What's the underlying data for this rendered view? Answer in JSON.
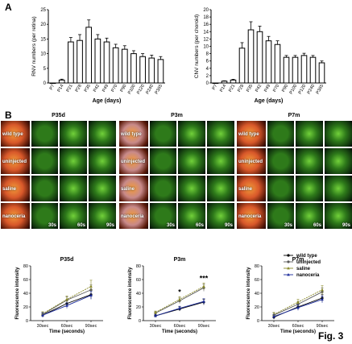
{
  "panel_a_label": "A",
  "panel_b_label": "B",
  "figure_label": "Fig. 3",
  "chart_data": [
    {
      "type": "bar",
      "ylabel": "RNV numbers (per retina)",
      "xlabel": "Age (days)",
      "ylim": [
        0,
        25
      ],
      "yticks": [
        0,
        5,
        10,
        15,
        20,
        25
      ],
      "categories": [
        "P7",
        "P14",
        "P21",
        "P28",
        "P35",
        "P42",
        "P49",
        "P70",
        "P90",
        "P100",
        "P120",
        "P240",
        "P365"
      ],
      "values": [
        0,
        1,
        14,
        14.5,
        19,
        15,
        14,
        12,
        11.5,
        10,
        9,
        8.5,
        8
      ],
      "errors": [
        0,
        0.3,
        1.5,
        2,
        2.5,
        1.5,
        1.3,
        1.2,
        1.2,
        1,
        1,
        1,
        1
      ]
    },
    {
      "type": "bar",
      "ylabel": "CNV numbers (per choroid)",
      "xlabel": "Age (days)",
      "ylim": [
        0,
        20
      ],
      "yticks": [
        0,
        2,
        4,
        6,
        8,
        10,
        12,
        14,
        16,
        18,
        20
      ],
      "categories": [
        "P7",
        "P14",
        "P21",
        "P28",
        "P35",
        "P42",
        "P49",
        "P70",
        "P90",
        "P100",
        "P120",
        "P240",
        "P365"
      ],
      "values": [
        0,
        0.5,
        0.8,
        9.5,
        14.5,
        14,
        11.5,
        10.5,
        7,
        7,
        7.5,
        7,
        5.5
      ],
      "errors": [
        0,
        0.1,
        0.2,
        1.5,
        2.2,
        1.5,
        1.2,
        1,
        0.5,
        0.5,
        0.6,
        0.5,
        0.5
      ]
    },
    {
      "type": "line",
      "title": "P35d",
      "xlabel": "Time (seconds)",
      "ylabel": "Fluorescence intensity",
      "categories": [
        "30sec",
        "60sec",
        "90sec"
      ],
      "ylim": [
        0,
        80
      ],
      "yticks": [
        0,
        20,
        40,
        60,
        80
      ],
      "series": [
        {
          "name": "wild type",
          "values": [
            8,
            25,
            38
          ],
          "errors": [
            3,
            4,
            6
          ]
        },
        {
          "name": "uninjected",
          "values": [
            9,
            30,
            45
          ],
          "errors": [
            3,
            5,
            7
          ]
        },
        {
          "name": "saline",
          "values": [
            10,
            31,
            50
          ],
          "errors": [
            3,
            5,
            9
          ]
        },
        {
          "name": "nanoceria",
          "values": [
            8,
            22,
            37
          ],
          "errors": [
            3,
            4,
            6
          ]
        }
      ]
    },
    {
      "type": "line",
      "title": "P3m",
      "xlabel": "Time (seconds)",
      "ylabel": "Fluorescence intensity",
      "categories": [
        "30sec",
        "60sec",
        "90sec"
      ],
      "ylim": [
        0,
        80
      ],
      "yticks": [
        0,
        20,
        40,
        60,
        80
      ],
      "annotations": [
        "*",
        "***"
      ],
      "series": [
        {
          "name": "wild type",
          "values": [
            7,
            17,
            27
          ],
          "errors": [
            2,
            3,
            4
          ]
        },
        {
          "name": "uninjected",
          "values": [
            11,
            29,
            48
          ],
          "errors": [
            2,
            4,
            5
          ]
        },
        {
          "name": "saline",
          "values": [
            12,
            31,
            50
          ],
          "errors": [
            2,
            4,
            5
          ]
        },
        {
          "name": "nanoceria",
          "values": [
            7,
            18,
            28
          ],
          "errors": [
            2,
            3,
            4
          ]
        }
      ]
    },
    {
      "type": "line",
      "title": "P7m",
      "xlabel": "Time (seconds)",
      "ylabel": "Fluorescence intensity",
      "categories": [
        "30sec",
        "60sec",
        "90sec"
      ],
      "ylim": [
        0,
        80
      ],
      "yticks": [
        0,
        20,
        40,
        60,
        80
      ],
      "series": [
        {
          "name": "wild type",
          "values": [
            5,
            20,
            33
          ],
          "errors": [
            3,
            4,
            5
          ]
        },
        {
          "name": "uninjected",
          "values": [
            8,
            24,
            42
          ],
          "errors": [
            3,
            4,
            6
          ]
        },
        {
          "name": "saline",
          "values": [
            9,
            27,
            45
          ],
          "errors": [
            3,
            4,
            6
          ]
        },
        {
          "name": "nanoceria",
          "values": [
            6,
            19,
            31
          ],
          "errors": [
            3,
            4,
            5
          ]
        }
      ]
    }
  ],
  "legend": [
    {
      "name": "wild type",
      "color": "#000000",
      "marker": "circle"
    },
    {
      "name": "uninjected",
      "color": "#5a5a5a",
      "marker": "circle"
    },
    {
      "name": "saline",
      "color": "#8a8a2a",
      "marker": "triangle"
    },
    {
      "name": "nanoceria",
      "color": "#1a2a9a",
      "marker": "triangle"
    }
  ],
  "image_grid": {
    "group_titles": [
      "P35d",
      "P3m",
      "P7m"
    ],
    "row_labels": [
      "wild type",
      "uninjected",
      "saline",
      "nanoceria"
    ],
    "time_labels": [
      "30s",
      "60s",
      "90s"
    ],
    "colors": {
      "red_fundus": "#d8582a",
      "red_bright": "#f29a3a",
      "green_dark": "#0c2a0c",
      "green_mid": "#2e7a1a",
      "green_bright": "#72d13a",
      "pink_fundus": "#c88a8a"
    }
  }
}
